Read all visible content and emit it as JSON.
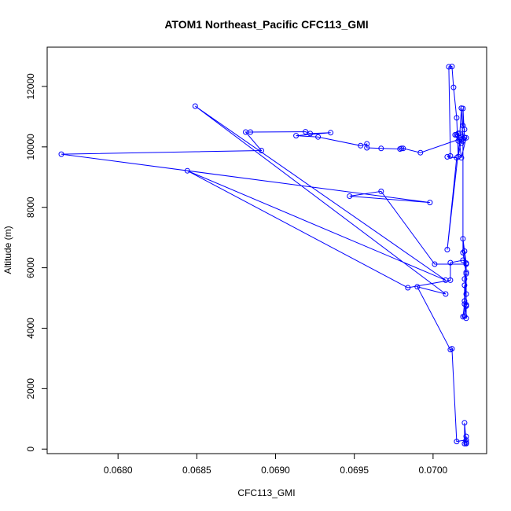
{
  "chart_data": {
    "type": "line",
    "title": "ATOM1 Northeast_Pacific CFC113_GMI",
    "xlabel": "CFC113_GMI",
    "ylabel": "Altitude (m)",
    "xlim": [
      0.06755,
      0.07034
    ],
    "ylim": [
      -150,
      13300
    ],
    "xticks": [
      0.068,
      0.0685,
      0.069,
      0.0695,
      0.07
    ],
    "xtick_labels": [
      "0.0680",
      "0.0685",
      "0.0690",
      "0.0695",
      "0.0700"
    ],
    "yticks": [
      0,
      2000,
      4000,
      6000,
      8000,
      10000,
      12000
    ],
    "ytick_labels": [
      "0",
      "2000",
      "4000",
      "6000",
      "8000",
      "10000",
      "12000"
    ],
    "grid": false,
    "series": [
      {
        "color": "#0000ff",
        "x": [
          0.07021,
          0.07021,
          0.07021,
          0.07021,
          0.0702,
          0.0702,
          0.07021,
          0.07015,
          0.07012,
          0.07011,
          0.0699,
          0.07008,
          0.06849,
          0.07008,
          0.06844,
          0.06984,
          0.07011,
          0.07011,
          0.07019,
          0.07021,
          0.0702,
          0.07021,
          0.07021,
          0.07019,
          0.0702,
          0.0702,
          0.07021,
          0.0702,
          0.07021,
          0.07021,
          0.0702,
          0.07019,
          0.07021,
          0.07019,
          0.07019,
          0.07018,
          0.07017,
          0.07019,
          0.0702,
          0.07019,
          0.07019,
          0.0702,
          0.07021,
          0.07018,
          0.07016,
          0.07015,
          0.07014,
          0.07016,
          0.07018,
          0.07018,
          0.07016,
          0.07015,
          0.07013,
          0.07012,
          0.0701,
          0.07011,
          0.07009,
          0.07015,
          0.07009,
          0.07017,
          0.06992,
          0.06981,
          0.0698,
          0.06979,
          0.06967,
          0.06958,
          0.06958,
          0.06954,
          0.06927,
          0.06913,
          0.06935,
          0.06922,
          0.06919,
          0.06884,
          0.06881,
          0.06891,
          0.06764,
          0.06998,
          0.06947,
          0.06967,
          0.07001,
          0.07021,
          0.07021,
          0.0702,
          0.07021
        ],
        "y": [
          230,
          180,
          420,
          190,
          870,
          180,
          300,
          250,
          3320,
          3290,
          5370,
          5130,
          11350,
          5590,
          9210,
          5340,
          5590,
          6170,
          6250,
          6150,
          4400,
          4730,
          4330,
          4380,
          4800,
          5420,
          5130,
          5630,
          5850,
          6150,
          6550,
          6960,
          5800,
          6500,
          10200,
          11280,
          10450,
          10270,
          10580,
          10700,
          11270,
          10310,
          10300,
          9640,
          10450,
          10400,
          10400,
          10200,
          10120,
          10250,
          9680,
          10960,
          11970,
          12660,
          12650,
          9700,
          9670,
          9640,
          6600,
          10260,
          9810,
          9950,
          9950,
          9930,
          9950,
          9970,
          10100,
          10040,
          10330,
          10370,
          10470,
          10440,
          10500,
          10490,
          10490,
          9880,
          9760,
          8160,
          8370,
          8530,
          6120,
          6120,
          4740,
          4900,
          4780
        ]
      }
    ]
  }
}
